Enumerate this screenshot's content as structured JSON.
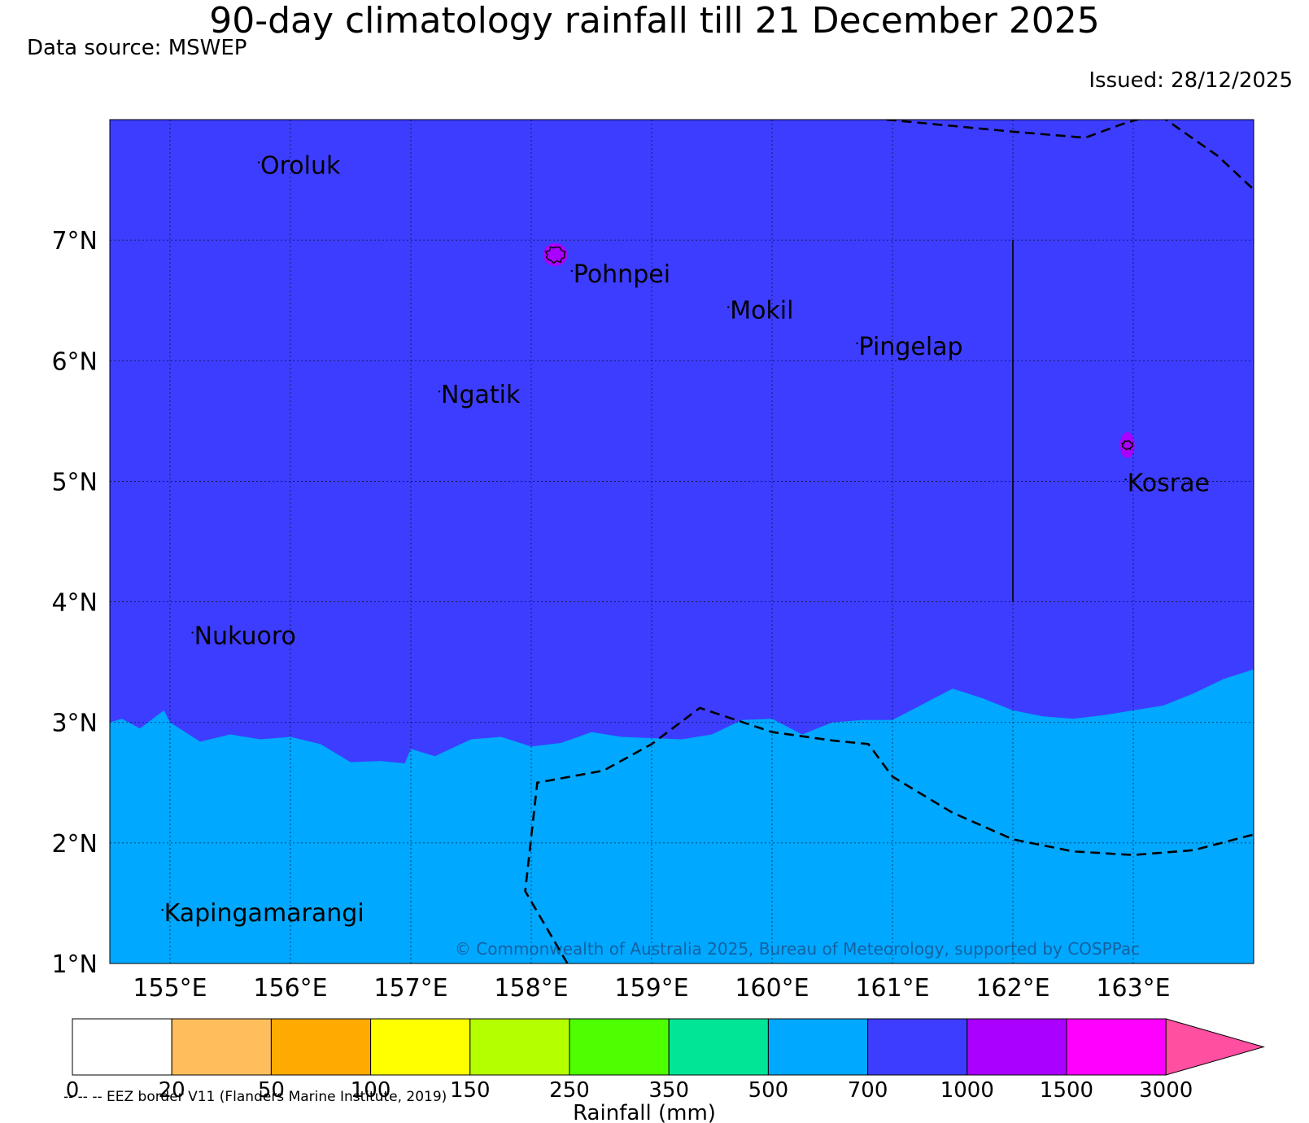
{
  "title": "90-day climatology rainfall till 21 December 2025",
  "data_source": "Data source: MSWEP",
  "issued": "Issued: 28/12/2025",
  "copyright": "© Commonwealth of Australia 2025, Bureau of Meteorology, supported by COSPPac",
  "map": {
    "lon_range": [
      154.5,
      164.0
    ],
    "lat_range": [
      1.0,
      8.0
    ],
    "lon_ticks": [
      {
        "value": 155,
        "label": "155°E"
      },
      {
        "value": 156,
        "label": "156°E"
      },
      {
        "value": 157,
        "label": "157°E"
      },
      {
        "value": 158,
        "label": "158°E"
      },
      {
        "value": 159,
        "label": "159°E"
      },
      {
        "value": 160,
        "label": "160°E"
      },
      {
        "value": 161,
        "label": "161°E"
      },
      {
        "value": 162,
        "label": "162°E"
      },
      {
        "value": 163,
        "label": "163°E"
      }
    ],
    "lat_ticks": [
      {
        "value": 1,
        "label": "1°N"
      },
      {
        "value": 2,
        "label": "2°N"
      },
      {
        "value": 3,
        "label": "3°N"
      },
      {
        "value": 4,
        "label": "4°N"
      },
      {
        "value": 5,
        "label": "5°N"
      },
      {
        "value": 6,
        "label": "6°N"
      },
      {
        "value": 7,
        "label": "7°N"
      }
    ],
    "places": [
      {
        "name": "Oroluk",
        "lon": 155.75,
        "lat": 7.55
      },
      {
        "name": "Pohnpei",
        "lon": 158.35,
        "lat": 6.65
      },
      {
        "name": "Mokil",
        "lon": 159.65,
        "lat": 6.35
      },
      {
        "name": "Pingelap",
        "lon": 160.72,
        "lat": 6.05
      },
      {
        "name": "Ngatik",
        "lon": 157.25,
        "lat": 5.65
      },
      {
        "name": "Kosrae",
        "lon": 162.95,
        "lat": 4.92
      },
      {
        "name": "Nukuoro",
        "lon": 155.2,
        "lat": 3.65
      },
      {
        "name": "Kapingamarangi",
        "lon": 154.95,
        "lat": 1.35
      }
    ],
    "islands": [
      {
        "name": "Pohnpei",
        "lon": 158.2,
        "lat": 6.88,
        "category": "1000-1500"
      },
      {
        "name": "Kosrae",
        "lon": 162.95,
        "lat": 5.3,
        "category": "1000-1500"
      }
    ],
    "region_700_1000": {
      "north_of": "boundary",
      "boundary_lon": [
        154.5,
        154.6,
        154.75,
        154.95,
        155.0,
        155.25,
        155.5,
        155.75,
        156.0,
        156.25,
        156.5,
        156.75,
        156.95,
        157.0,
        157.2,
        157.5,
        157.75,
        158.0,
        158.25,
        158.5,
        158.75,
        159.0,
        159.25,
        159.5,
        159.75,
        160.0,
        160.25,
        160.5,
        160.75,
        161.0,
        161.25,
        161.5,
        161.75,
        162.0,
        162.25,
        162.5,
        162.75,
        163.0,
        163.25,
        163.5,
        163.75,
        164.0
      ],
      "boundary_lat": [
        3.0,
        3.03,
        2.95,
        3.1,
        3.0,
        2.84,
        2.9,
        2.86,
        2.88,
        2.82,
        2.67,
        2.68,
        2.66,
        2.78,
        2.72,
        2.86,
        2.88,
        2.8,
        2.83,
        2.92,
        2.88,
        2.87,
        2.86,
        2.9,
        3.02,
        3.03,
        2.9,
        3.0,
        3.02,
        3.02,
        3.15,
        3.28,
        3.2,
        3.1,
        3.05,
        3.03,
        3.06,
        3.1,
        3.14,
        3.24,
        3.36,
        3.44
      ]
    },
    "eez_borders": [
      {
        "lon": [
          160.95,
          162.0,
          162.6,
          162.9,
          163.2,
          163.7,
          164.0
        ],
        "lat": [
          8.0,
          7.9,
          7.85,
          7.96,
          8.05,
          7.7,
          7.42
        ]
      },
      {
        "lon": [
          158.3,
          157.95,
          158.05,
          158.6,
          159.0,
          159.4,
          160.0,
          160.5,
          160.8,
          161.0,
          161.5,
          162.0,
          162.5,
          163.0,
          163.5,
          164.0
        ],
        "lat": [
          1.0,
          1.6,
          2.5,
          2.6,
          2.82,
          3.12,
          2.92,
          2.85,
          2.82,
          2.55,
          2.25,
          2.03,
          1.93,
          1.9,
          1.94,
          2.07
        ]
      }
    ],
    "solid_line": {
      "lon": [
        162.0,
        162.0
      ],
      "lat": [
        7.0,
        4.0
      ]
    }
  },
  "colorbar": {
    "bins": [
      {
        "label": "0",
        "color": "#ffffff"
      },
      {
        "label": "20",
        "color": "#ffbe5c"
      },
      {
        "label": "50",
        "color": "#ffaa00"
      },
      {
        "label": "100",
        "color": "#ffff00"
      },
      {
        "label": "150",
        "color": "#b4ff00"
      },
      {
        "label": "250",
        "color": "#4dff00"
      },
      {
        "label": "350",
        "color": "#00e696"
      },
      {
        "label": "500",
        "color": "#00a8ff"
      },
      {
        "label": "700",
        "color": "#3d3dff"
      },
      {
        "label": "1000",
        "color": "#aa00ff"
      },
      {
        "label": "1500",
        "color": "#ff00ff"
      },
      {
        "label": "3000",
        "color": "#ff4fa0"
      }
    ],
    "xlabel": "Rainfall (mm)"
  },
  "eez_note": "-- -- -- EEZ border V11 (Flanders Marine Institute, 2019)",
  "colors": {
    "background_500_700": "#00a8ff",
    "region_700_1000": "#3d3dff",
    "islands": "#aa00ff",
    "copyright_text": "#1a4f8a"
  }
}
